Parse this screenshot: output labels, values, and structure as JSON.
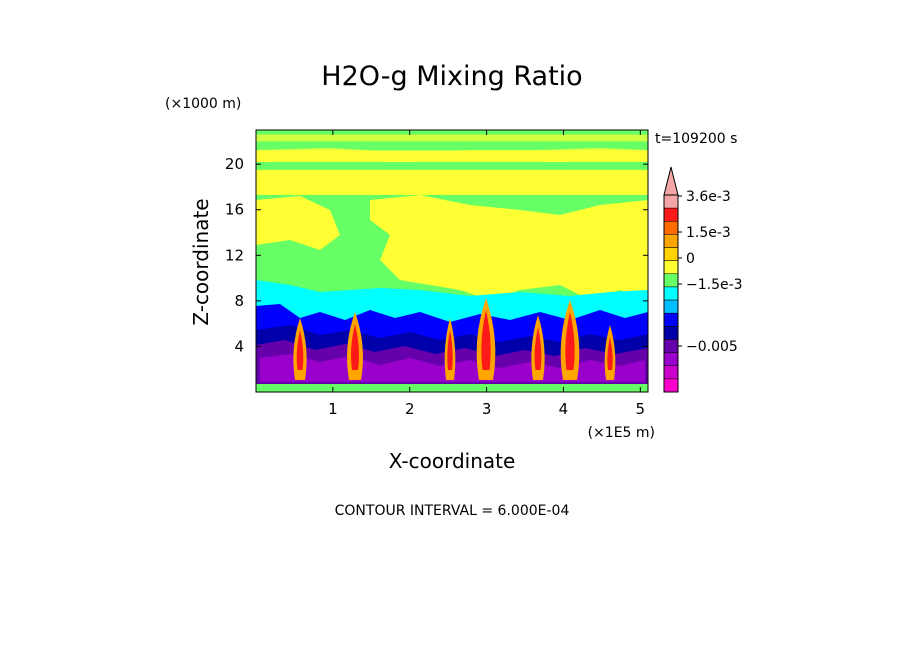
{
  "chart_data": {
    "type": "heatmap",
    "title": "H2O-g Mixing Ratio",
    "xlabel": "X-coordinate",
    "ylabel": "Z-coordinate",
    "x_unit": "(×1E5 m)",
    "y_unit": "(×1000 m)",
    "time_label": "t=109200 s",
    "footer": "CONTOUR INTERVAL = 6.000E-04",
    "xlim": [
      0,
      5.1
    ],
    "ylim": [
      0,
      23
    ],
    "x_ticks": [
      "1",
      "2",
      "3",
      "4",
      "5"
    ],
    "y_ticks": [
      "4",
      "8",
      "12",
      "16",
      "20"
    ],
    "colorbar": {
      "labels": [
        "3.6e-3",
        "1.5e-3",
        "0",
        "−1.5e-3",
        "−0.005"
      ],
      "levels_high_to_low": [
        {
          "color": "#f4a6a6"
        },
        {
          "color": "#ff1a1a"
        },
        {
          "color": "#ff6a00"
        },
        {
          "color": "#ffa500"
        },
        {
          "color": "#ffd200"
        },
        {
          "color": "#ffff33"
        },
        {
          "color": "#66ff66"
        },
        {
          "color": "#00ffff"
        },
        {
          "color": "#00bfff"
        },
        {
          "color": "#0000ff"
        },
        {
          "color": "#0000aa"
        },
        {
          "color": "#6600aa"
        },
        {
          "color": "#9900cc"
        },
        {
          "color": "#cc00cc"
        },
        {
          "color": "#ff00cc"
        }
      ]
    },
    "field_colors": {
      "green": "#66ff66",
      "yellow": "#ffff33",
      "cyan": "#00ffff",
      "blue": "#0000ff",
      "darkblue": "#0000aa",
      "purple": "#6600aa",
      "violet": "#9900cc",
      "orange": "#ffa500",
      "red": "#ff1a1a"
    }
  }
}
